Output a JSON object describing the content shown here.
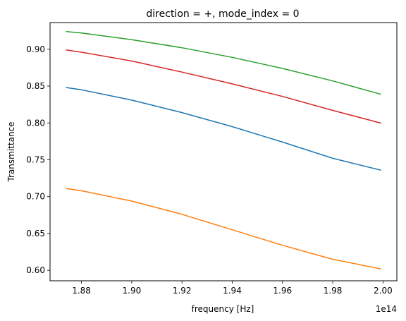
{
  "chart_data": {
    "type": "line",
    "title": "direction = +, mode_index = 0",
    "xlabel": "frequency [Hz]",
    "ylabel": "Transmittance",
    "x_offset_label": "1e14",
    "xlim": [
      1.8675,
      2.0055
    ],
    "ylim": [
      0.5858,
      0.9362
    ],
    "x_ticks": [
      1.88,
      1.9,
      1.92,
      1.94,
      1.96,
      1.98,
      2.0
    ],
    "x_tick_labels": [
      "1.88",
      "1.90",
      "1.92",
      "1.94",
      "1.96",
      "1.98",
      "2.00"
    ],
    "y_ticks": [
      0.6,
      0.65,
      0.7,
      0.75,
      0.8,
      0.85,
      0.9
    ],
    "y_tick_labels": [
      "0.60",
      "0.65",
      "0.70",
      "0.75",
      "0.80",
      "0.85",
      "0.90"
    ],
    "grid": false,
    "x": [
      1.874,
      1.88,
      1.9,
      1.92,
      1.94,
      1.96,
      1.98,
      1.999
    ],
    "series": [
      {
        "color": "#1f77b4",
        "values": [
          0.848,
          0.845,
          0.831,
          0.814,
          0.795,
          0.774,
          0.752,
          0.736
        ]
      },
      {
        "color": "#ff7f0e",
        "values": [
          0.711,
          0.708,
          0.694,
          0.676,
          0.655,
          0.634,
          0.615,
          0.602
        ]
      },
      {
        "color": "#2ca02c",
        "values": [
          0.924,
          0.922,
          0.913,
          0.902,
          0.889,
          0.874,
          0.857,
          0.839
        ]
      },
      {
        "color": "#d62728",
        "values": [
          0.899,
          0.896,
          0.884,
          0.869,
          0.853,
          0.836,
          0.817,
          0.8
        ]
      }
    ]
  }
}
